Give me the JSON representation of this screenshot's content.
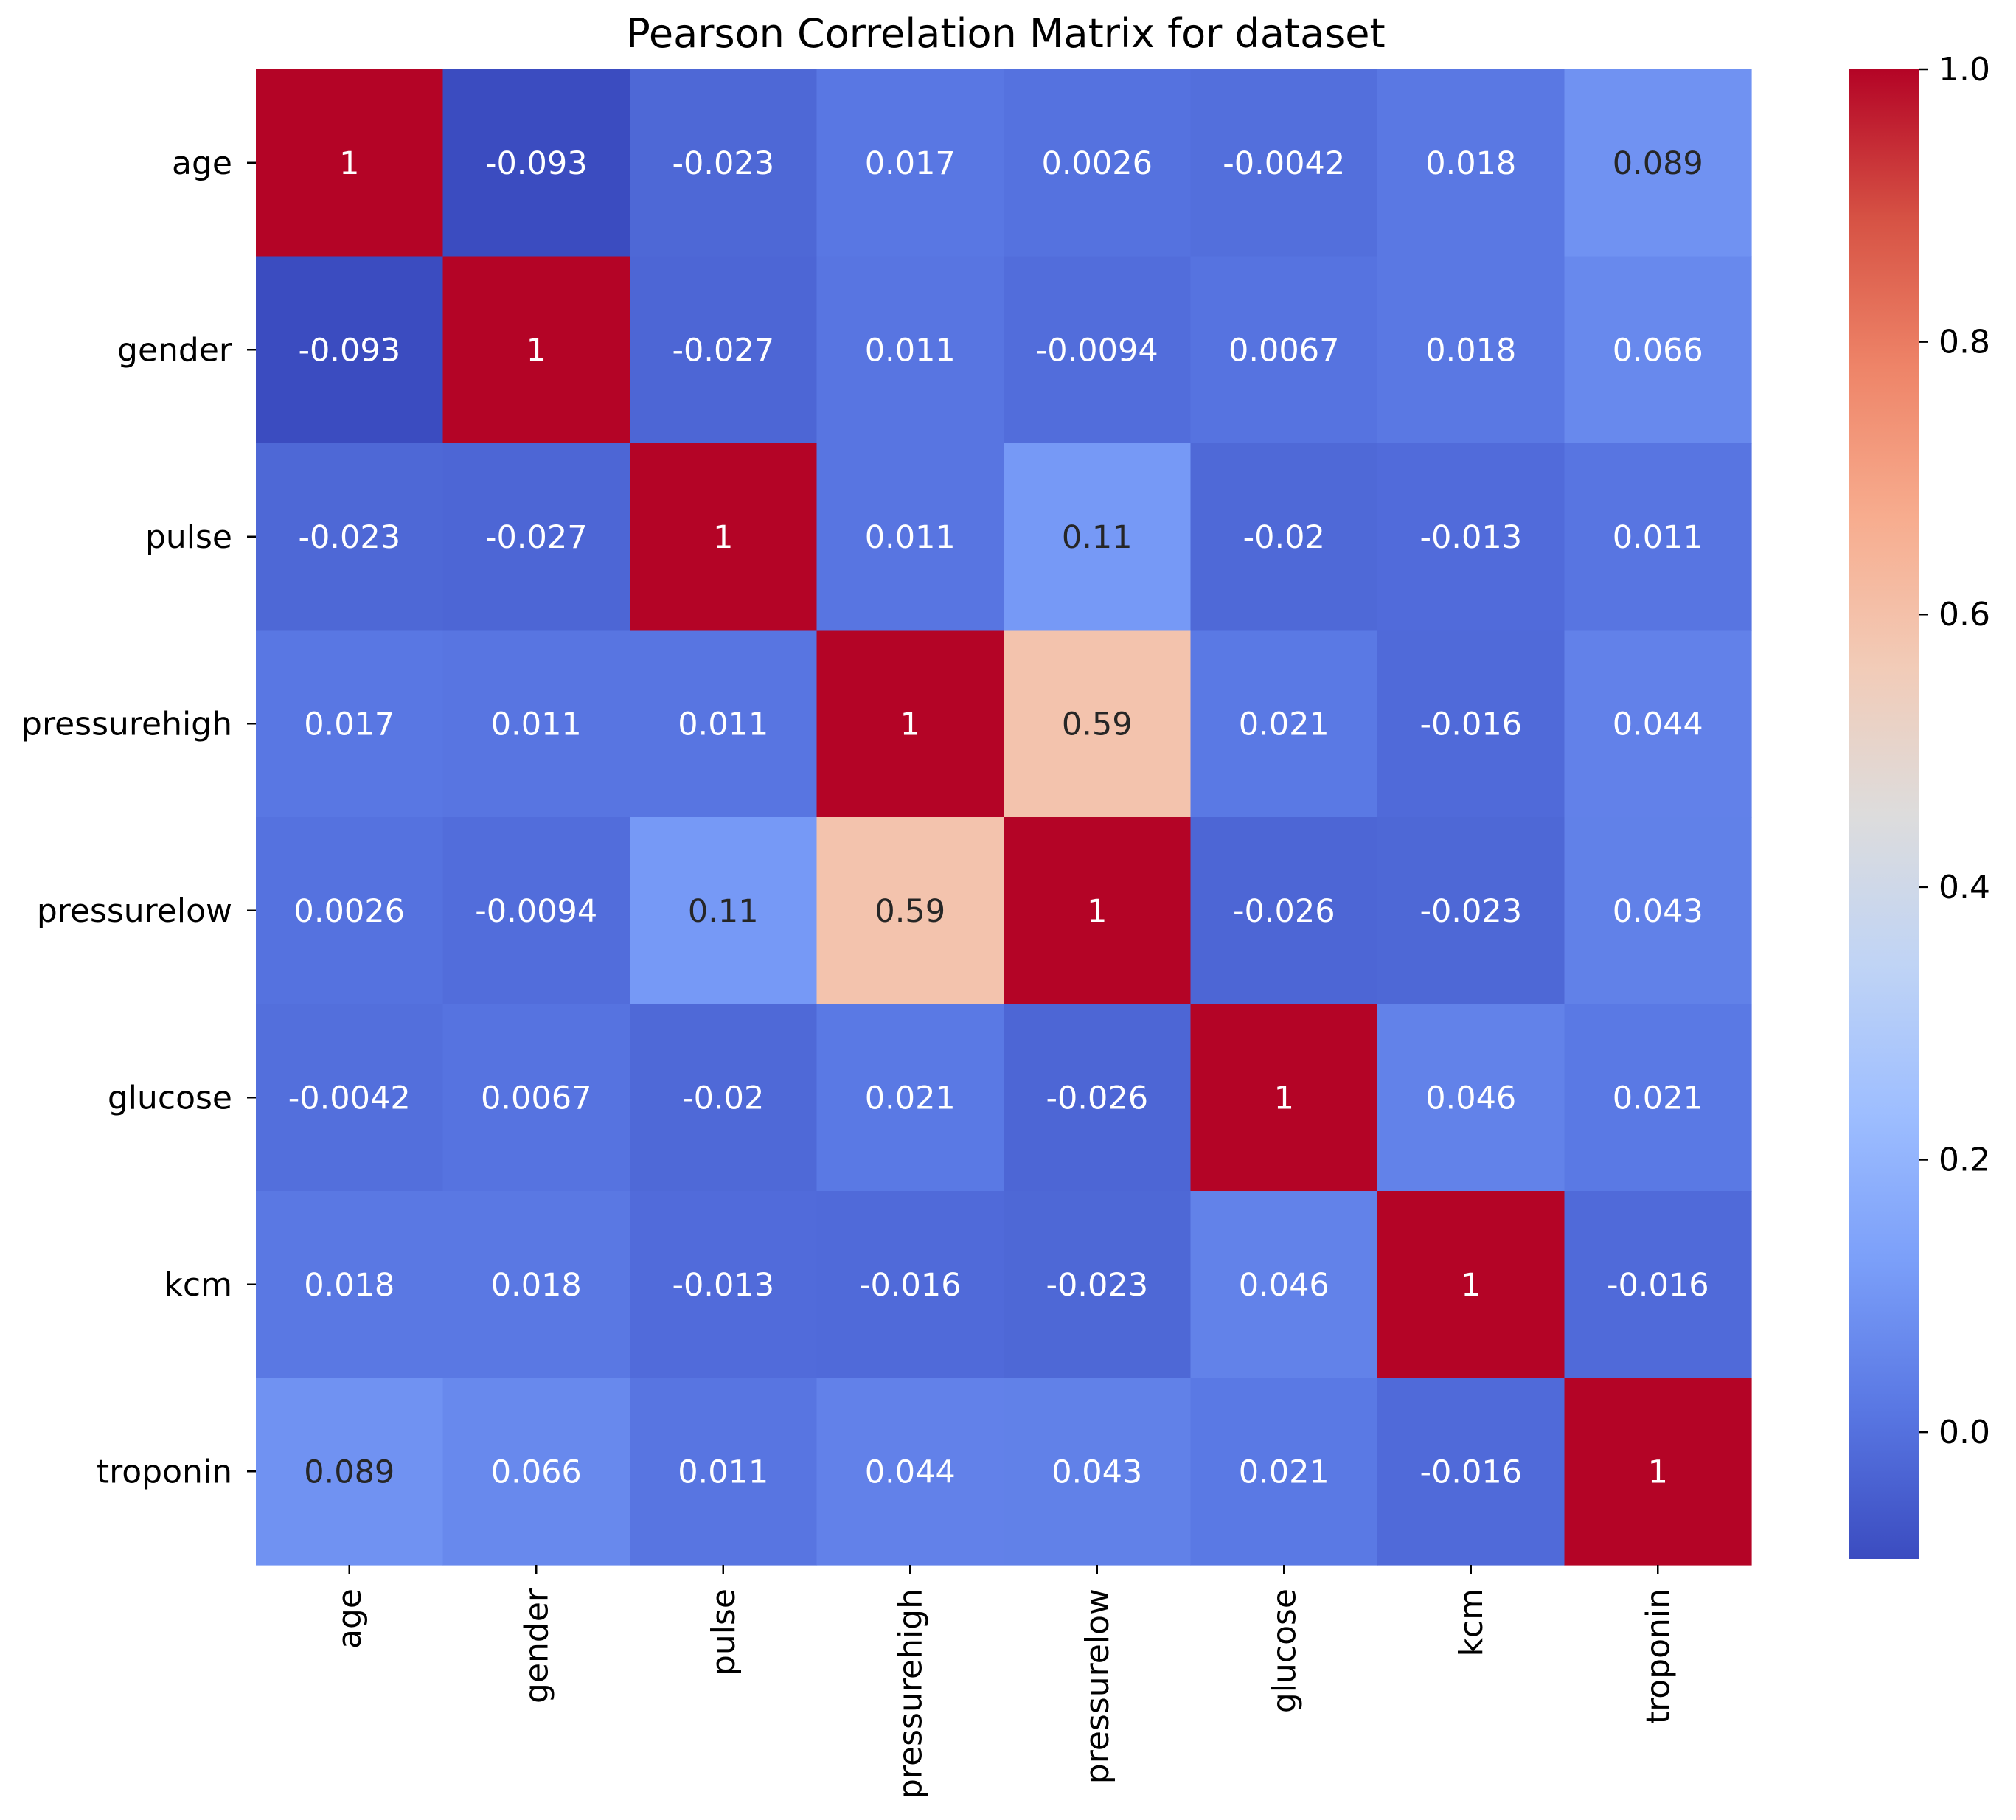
{
  "chart_data": {
    "type": "heatmap",
    "title": "Pearson Correlation Matrix for dataset",
    "xlabel": "",
    "ylabel": "",
    "row_labels": [
      "age",
      "gender",
      "pulse",
      "pressurehigh",
      "pressurelow",
      "glucose",
      "kcm",
      "troponin"
    ],
    "col_labels": [
      "age",
      "gender",
      "pulse",
      "pressurehigh",
      "pressurelow",
      "glucose",
      "kcm",
      "troponin"
    ],
    "values": [
      [
        1,
        -0.093,
        -0.023,
        0.017,
        0.0026,
        -0.0042,
        0.018,
        0.089
      ],
      [
        -0.093,
        1,
        -0.027,
        0.011,
        -0.0094,
        0.0067,
        0.018,
        0.066
      ],
      [
        -0.023,
        -0.027,
        1,
        0.011,
        0.11,
        -0.02,
        -0.013,
        0.011
      ],
      [
        0.017,
        0.011,
        0.011,
        1,
        0.59,
        0.021,
        -0.016,
        0.044
      ],
      [
        0.0026,
        -0.0094,
        0.11,
        0.59,
        1,
        -0.026,
        -0.023,
        0.043
      ],
      [
        -0.0042,
        0.0067,
        -0.02,
        0.021,
        -0.026,
        1,
        0.046,
        0.021
      ],
      [
        0.018,
        0.018,
        -0.013,
        -0.016,
        -0.023,
        0.046,
        1,
        -0.016
      ],
      [
        0.089,
        0.066,
        0.011,
        0.044,
        0.043,
        0.021,
        -0.016,
        1
      ]
    ],
    "annotations": [
      [
        "1",
        "-0.093",
        "-0.023",
        "0.017",
        "0.0026",
        "-0.0042",
        "0.018",
        "0.089"
      ],
      [
        "-0.093",
        "1",
        "-0.027",
        "0.011",
        "-0.0094",
        "0.0067",
        "0.018",
        "0.066"
      ],
      [
        "-0.023",
        "-0.027",
        "1",
        "0.011",
        "0.11",
        "-0.02",
        "-0.013",
        "0.011"
      ],
      [
        "0.017",
        "0.011",
        "0.011",
        "1",
        "0.59",
        "0.021",
        "-0.016",
        "0.044"
      ],
      [
        "0.0026",
        "-0.0094",
        "0.11",
        "0.59",
        "1",
        "-0.026",
        "-0.023",
        "0.043"
      ],
      [
        "-0.0042",
        "0.0067",
        "-0.02",
        "0.021",
        "-0.026",
        "1",
        "0.046",
        "0.021"
      ],
      [
        "0.018",
        "0.018",
        "-0.013",
        "-0.016",
        "-0.023",
        "0.046",
        "1",
        "-0.016"
      ],
      [
        "0.089",
        "0.066",
        "0.011",
        "0.044",
        "0.043",
        "0.021",
        "-0.016",
        "1"
      ]
    ],
    "colormap": "coolwarm",
    "colormap_stops": [
      "#3b4cc0",
      "#5977e3",
      "#7b9ff9",
      "#9ebeff",
      "#c0d4f5",
      "#dddcdc",
      "#f2cbb7",
      "#f7ac8e",
      "#ee8468",
      "#d65244",
      "#b40426"
    ],
    "vmin": -0.093,
    "vmax": 1.0,
    "colorbar": {
      "ticks": [
        0.0,
        0.2,
        0.4,
        0.6,
        0.8,
        1.0
      ],
      "tick_labels": [
        "0.0",
        "0.2",
        "0.4",
        "0.6",
        "0.8",
        "1.0"
      ],
      "placement": "right"
    },
    "grid": false
  }
}
